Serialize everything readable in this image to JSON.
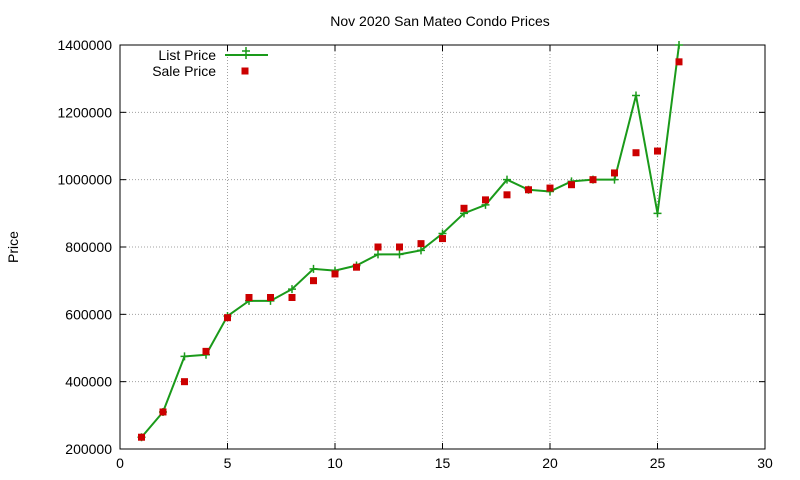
{
  "chart_data": {
    "type": "line",
    "title": "Nov 2020 San Mateo Condo Prices",
    "xlabel": "",
    "ylabel": "Price",
    "xlim": [
      0,
      30
    ],
    "ylim": [
      200000,
      1400000
    ],
    "xticks": [
      0,
      5,
      10,
      15,
      20,
      25,
      30
    ],
    "yticks": [
      200000,
      400000,
      600000,
      800000,
      1000000,
      1200000,
      1400000
    ],
    "x_tick_labels": [
      "0",
      "5",
      "10",
      "15",
      "20",
      "25",
      "30"
    ],
    "y_tick_labels": [
      "200000",
      "400000",
      "600000",
      "800000",
      "1000000",
      "1200000",
      "1400000"
    ],
    "grid": true,
    "legend_position": "top-left",
    "series": [
      {
        "name": "List Price",
        "style": "linespoints",
        "marker": "plus",
        "color": "#1a9a1a",
        "x": [
          1,
          2,
          3,
          4,
          5,
          6,
          7,
          8,
          9,
          10,
          11,
          12,
          13,
          14,
          15,
          16,
          17,
          18,
          19,
          20,
          21,
          22,
          23,
          24,
          25,
          26
        ],
        "values": [
          235000,
          310000,
          475000,
          480000,
          595000,
          640000,
          640000,
          675000,
          735000,
          730000,
          745000,
          778000,
          778000,
          790000,
          840000,
          900000,
          925000,
          1000000,
          970000,
          965000,
          995000,
          1000000,
          1000000,
          1250000,
          900000,
          1400000
        ]
      },
      {
        "name": "Sale Price",
        "style": "points",
        "marker": "square",
        "color": "#cc0000",
        "x": [
          1,
          2,
          3,
          4,
          5,
          6,
          7,
          8,
          9,
          10,
          11,
          12,
          13,
          14,
          15,
          16,
          17,
          18,
          19,
          20,
          21,
          22,
          23,
          24,
          25,
          26
        ],
        "values": [
          235000,
          310000,
          400000,
          490000,
          590000,
          650000,
          650000,
          650000,
          700000,
          720000,
          740000,
          800000,
          800000,
          810000,
          825000,
          915000,
          940000,
          955000,
          970000,
          975000,
          985000,
          1000000,
          1020000,
          1080000,
          1085000,
          1350000
        ]
      }
    ]
  }
}
